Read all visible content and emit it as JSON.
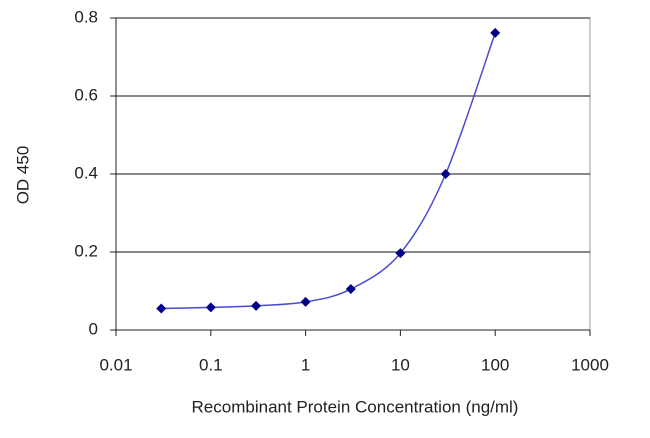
{
  "chart_data": {
    "type": "line",
    "x_label": "Recombinant Protein Concentration (ng/ml)",
    "y_label": "OD 450",
    "x_scale": "log",
    "grid": true,
    "series": [
      {
        "color": "#00008b",
        "x": [
          0.03,
          0.1,
          0.3,
          1,
          3,
          10,
          30,
          100
        ],
        "values": [
          0.055,
          0.058,
          0.062,
          0.072,
          0.105,
          0.197,
          0.4,
          0.762
        ]
      }
    ],
    "xlim": [
      0.01,
      1000
    ],
    "xticks": [
      0.01,
      0.1,
      1,
      10,
      100,
      1000
    ],
    "ylim": [
      0,
      0.8
    ],
    "yticks": [
      0,
      0.2,
      0.4,
      0.6,
      0.8
    ]
  }
}
